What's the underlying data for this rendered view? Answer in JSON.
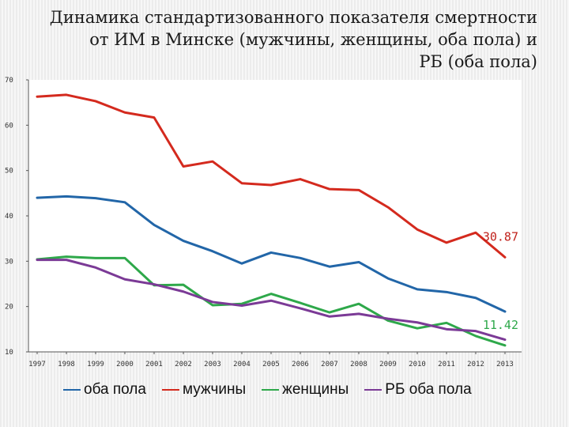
{
  "chart_data": {
    "type": "line",
    "title": "Динамика стандартизованного показателя смертности от ИМ в Минске (мужчины, женщины, оба пола) и РБ (оба пола)",
    "title_lines": [
      "Динамика стандартизованного показателя смертности",
      "от ИМ в Минске (мужчины, женщины, оба пола) и",
      "РБ (оба пола)"
    ],
    "x": [
      "1997",
      "1998",
      "1999",
      "2000",
      "2001",
      "2002",
      "2003",
      "2004",
      "2005",
      "2006",
      "2007",
      "2008",
      "2009",
      "2010",
      "2011",
      "2012",
      "2013"
    ],
    "ylim": [
      10,
      70
    ],
    "yticks": [
      10,
      20,
      30,
      40,
      50,
      60,
      70
    ],
    "grid": false,
    "legend_position": "bottom",
    "series": [
      {
        "name": "оба пола",
        "color": "#2266a8",
        "values": [
          44.0,
          44.3,
          43.9,
          43.0,
          38.0,
          34.5,
          32.2,
          29.5,
          31.9,
          30.7,
          28.8,
          29.8,
          26.2,
          23.8,
          23.2,
          21.9,
          18.9
        ]
      },
      {
        "name": "мужчины",
        "color": "#d42a1e",
        "values": [
          66.3,
          66.7,
          65.3,
          62.8,
          61.7,
          50.9,
          52.0,
          47.2,
          46.8,
          48.1,
          45.9,
          45.7,
          41.9,
          37.0,
          34.1,
          36.3,
          30.87
        ]
      },
      {
        "name": "женщины",
        "color": "#2ea84a",
        "values": [
          30.4,
          31.0,
          30.7,
          30.7,
          24.7,
          24.8,
          20.3,
          20.6,
          22.8,
          20.8,
          18.7,
          20.6,
          16.9,
          15.2,
          16.4,
          13.5,
          11.42
        ]
      },
      {
        "name": "РБ оба пола",
        "color": "#7b3a96",
        "values": [
          30.3,
          30.3,
          28.6,
          26.0,
          24.9,
          23.3,
          21.0,
          20.2,
          21.3,
          19.6,
          17.8,
          18.4,
          17.3,
          16.5,
          15.0,
          14.6,
          12.7
        ]
      }
    ],
    "annotations": [
      {
        "text": "30.87",
        "series": "мужчины",
        "color": "#c0211b"
      },
      {
        "text": "11.42",
        "series": "женщины",
        "color": "#2ea84a"
      }
    ]
  }
}
